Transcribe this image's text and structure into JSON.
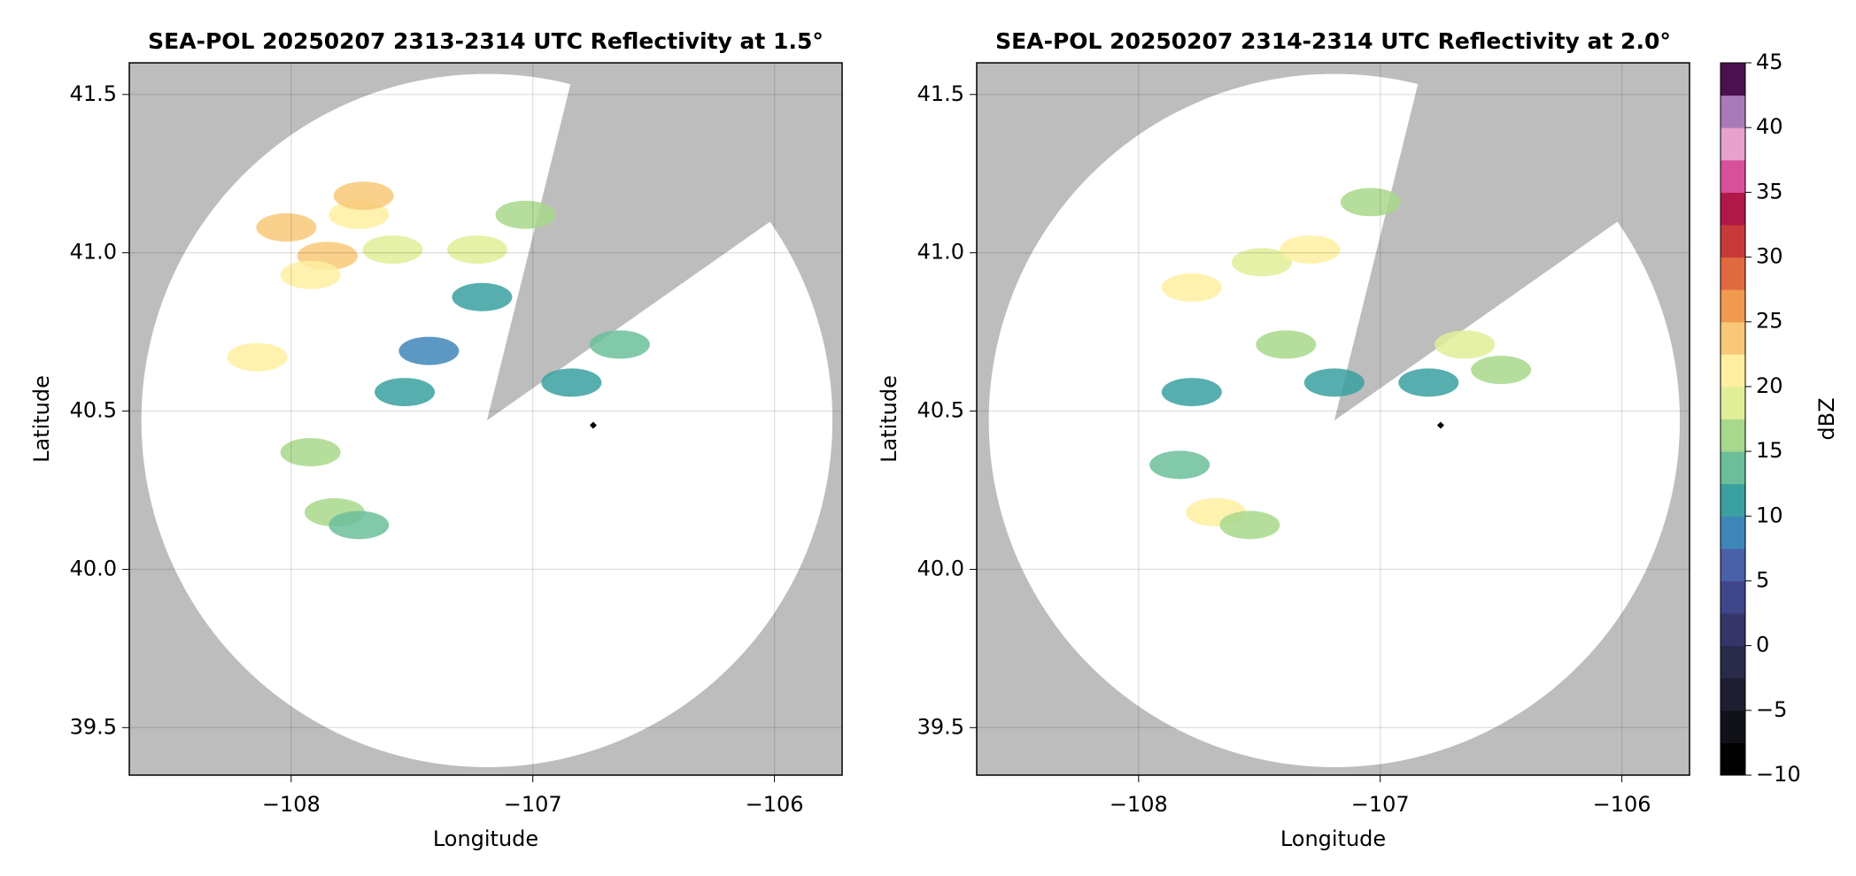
{
  "chart_data": [
    {
      "type": "radar",
      "title": "SEA-POL 20250207 2313-2314 UTC Reflectivity at 1.5°",
      "xlabel": "Longitude",
      "ylabel": "Latitude",
      "xlim": [
        -108.67,
        -105.72
      ],
      "ylim": [
        39.35,
        41.6
      ],
      "xticks": [
        {
          "value": -108,
          "label": "−108"
        },
        {
          "value": -107,
          "label": "−107"
        },
        {
          "value": -106,
          "label": "−106"
        }
      ],
      "yticks": [
        {
          "value": 39.5,
          "label": "39.5"
        },
        {
          "value": 40,
          "label": "40.0"
        },
        {
          "value": 40.5,
          "label": "40.5"
        },
        {
          "value": 41,
          "label": "41.0"
        },
        41.5
      ],
      "grid": true,
      "site": {
        "lon": -107.19,
        "lat": 40.47
      },
      "range_deg": {
        "lon": 1.43,
        "lat": 1.095
      },
      "blocked_azimuth": [
        14,
        55
      ],
      "marker": {
        "lon": -106.75,
        "lat": 40.455
      },
      "echoes": [
        {
          "lon": -107.85,
          "lat": 40.99,
          "dbz": 24
        },
        {
          "lon": -107.92,
          "lat": 40.93,
          "dbz": 22
        },
        {
          "lon": -107.72,
          "lat": 41.12,
          "dbz": 22
        },
        {
          "lon": -107.7,
          "lat": 41.18,
          "dbz": 23
        },
        {
          "lon": -108.02,
          "lat": 41.08,
          "dbz": 23
        },
        {
          "lon": -107.58,
          "lat": 41.01,
          "dbz": 18
        },
        {
          "lon": -107.23,
          "lat": 41.01,
          "dbz": 18
        },
        {
          "lon": -108.14,
          "lat": 40.67,
          "dbz": 22
        },
        {
          "lon": -106.64,
          "lat": 40.71,
          "dbz": 14
        },
        {
          "lon": -107.43,
          "lat": 40.69,
          "dbz": 9
        },
        {
          "lon": -107.82,
          "lat": 40.18,
          "dbz": 16
        },
        {
          "lon": -107.72,
          "lat": 40.14,
          "dbz": 14
        },
        {
          "lon": -107.92,
          "lat": 40.37,
          "dbz": 15
        },
        {
          "lon": -107.21,
          "lat": 40.86,
          "dbz": 12
        },
        {
          "lon": -107.03,
          "lat": 41.12,
          "dbz": 16
        },
        {
          "lon": -107.53,
          "lat": 40.56,
          "dbz": 10
        },
        {
          "lon": -106.84,
          "lat": 40.59,
          "dbz": 10
        }
      ]
    },
    {
      "type": "radar",
      "title": "SEA-POL 20250207 2314-2314 UTC Reflectivity at 2.0°",
      "xlabel": "Longitude",
      "ylabel": "Latitude",
      "xlim": [
        -108.67,
        -105.72
      ],
      "ylim": [
        39.35,
        41.6
      ],
      "xticks": [
        {
          "value": -108,
          "label": "−108"
        },
        {
          "value": -107,
          "label": "−107"
        },
        {
          "value": -106,
          "label": "−106"
        }
      ],
      "yticks": [
        {
          "value": 39.5,
          "label": "39.5"
        },
        {
          "value": 40,
          "label": "40.0"
        },
        {
          "value": 40.5,
          "label": "40.5"
        },
        {
          "value": 41,
          "label": "41.0"
        },
        41.5
      ],
      "grid": true,
      "site": {
        "lon": -107.19,
        "lat": 40.47
      },
      "range_deg": {
        "lon": 1.43,
        "lat": 1.095
      },
      "blocked_azimuth": [
        14,
        55
      ],
      "marker": {
        "lon": -106.75,
        "lat": 40.455
      },
      "echoes": [
        {
          "lon": -107.78,
          "lat": 40.89,
          "dbz": 20
        },
        {
          "lon": -107.49,
          "lat": 40.97,
          "dbz": 18
        },
        {
          "lon": -107.29,
          "lat": 41.01,
          "dbz": 20
        },
        {
          "lon": -107.04,
          "lat": 41.16,
          "dbz": 17
        },
        {
          "lon": -107.39,
          "lat": 40.71,
          "dbz": 16
        },
        {
          "lon": -107.19,
          "lat": 40.59,
          "dbz": 10
        },
        {
          "lon": -106.65,
          "lat": 40.71,
          "dbz": 18
        },
        {
          "lon": -106.5,
          "lat": 40.63,
          "dbz": 16
        },
        {
          "lon": -107.68,
          "lat": 40.18,
          "dbz": 20
        },
        {
          "lon": -107.54,
          "lat": 40.14,
          "dbz": 16
        },
        {
          "lon": -107.83,
          "lat": 40.33,
          "dbz": 14
        },
        {
          "lon": -107.78,
          "lat": 40.56,
          "dbz": 12
        },
        {
          "lon": -106.8,
          "lat": 40.59,
          "dbz": 12
        }
      ]
    }
  ],
  "colorbar": {
    "label": "dBZ",
    "lim": [
      -10,
      45
    ],
    "ticks": [
      {
        "value": -10,
        "label": "−10"
      },
      {
        "value": -5,
        "label": "−5"
      },
      0,
      5,
      10,
      15,
      20,
      25,
      30,
      35,
      40,
      45
    ],
    "colors": [
      "#000000",
      "#111118",
      "#1e1e30",
      "#2a2a4a",
      "#35356a",
      "#40468a",
      "#4a60a8",
      "#3f86b8",
      "#3aa0a0",
      "#6cbf9a",
      "#a8d88c",
      "#e0ee98",
      "#fef0a0",
      "#f8c878",
      "#f09a50",
      "#e06a40",
      "#c83a3a",
      "#b01848",
      "#d8509a",
      "#e8a0cc",
      "#a87ab8",
      "#4a1050"
    ]
  }
}
